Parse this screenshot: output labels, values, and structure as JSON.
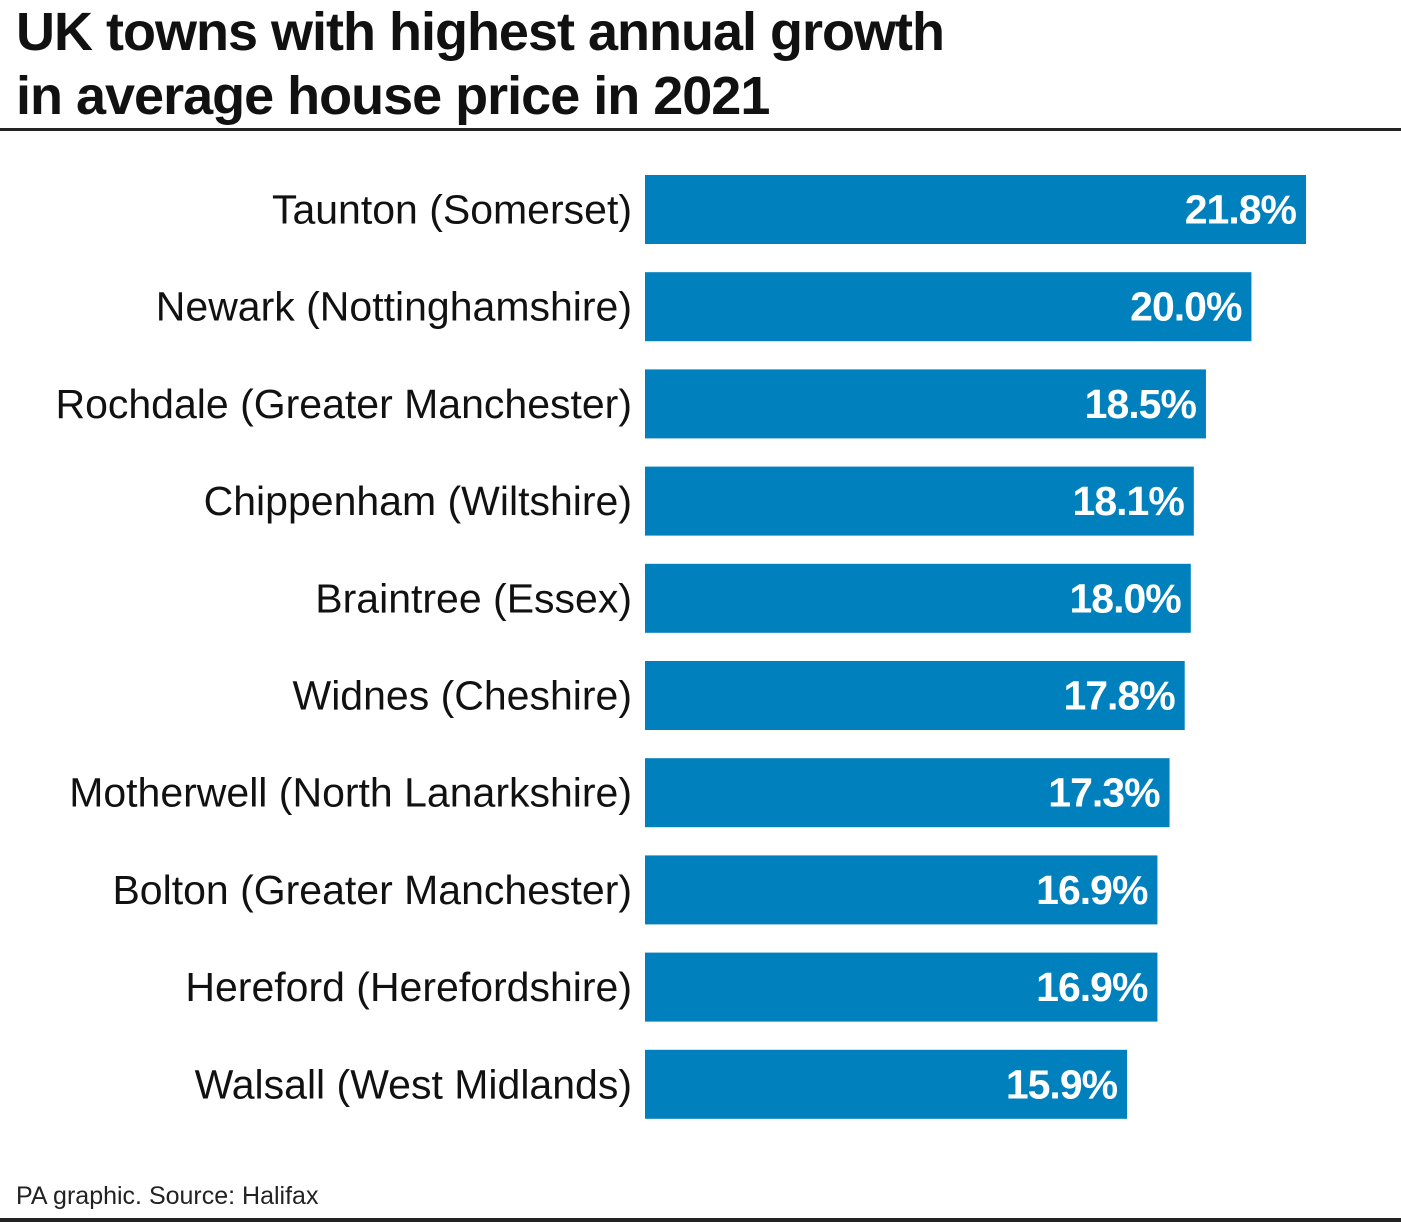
{
  "title_line1": "UK towns with highest annual growth",
  "title_line2": "in average house price in 2021",
  "source": "PA graphic. Source: Halifax",
  "colors": {
    "bar": "#0080bd",
    "value_text": "#ffffff"
  },
  "chart_data": {
    "type": "bar",
    "orientation": "horizontal",
    "title": "UK towns with highest annual growth in average house price in 2021",
    "categories": [
      "Taunton (Somerset)",
      "Newark (Nottinghamshire)",
      "Rochdale (Greater Manchester)",
      "Chippenham (Wiltshire)",
      "Braintree (Essex)",
      "Widnes (Cheshire)",
      "Motherwell (North Lanarkshire)",
      "Bolton (Greater Manchester)",
      "Hereford (Herefordshire)",
      "Walsall (West Midlands)"
    ],
    "values": [
      21.8,
      20.0,
      18.5,
      18.1,
      18.0,
      17.8,
      17.3,
      16.9,
      16.9,
      15.9
    ],
    "value_labels": [
      "21.8%",
      "20.0%",
      "18.5%",
      "18.1%",
      "18.0%",
      "17.8%",
      "17.3%",
      "16.9%",
      "16.9%",
      "15.9%"
    ],
    "xlabel": "",
    "ylabel": "",
    "xlim": [
      0,
      21.8
    ],
    "grid": false
  }
}
